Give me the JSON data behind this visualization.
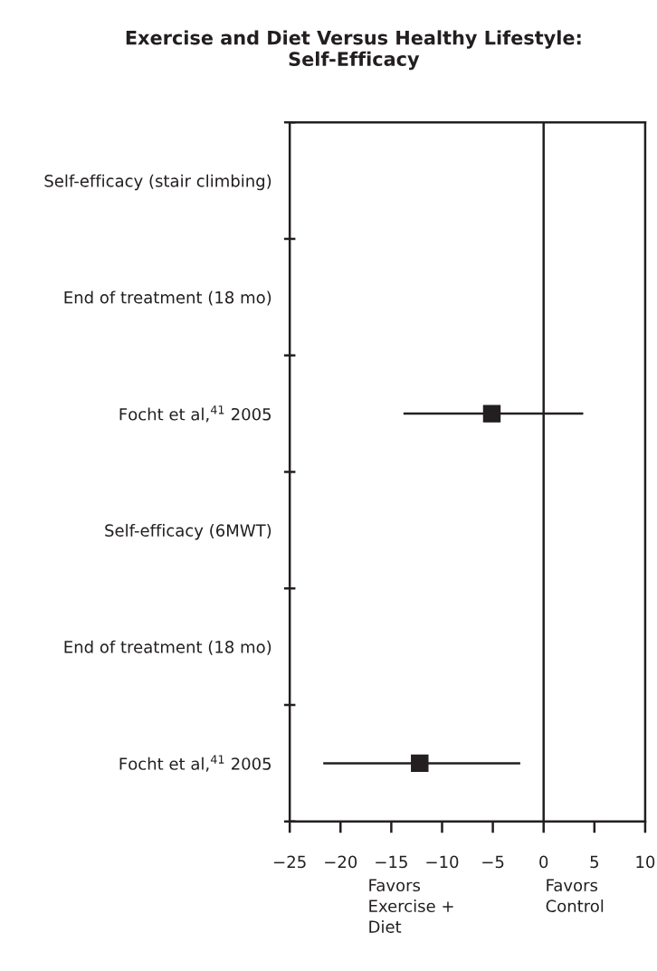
{
  "chart_data": {
    "type": "scatter",
    "orientation": "horizontal",
    "title": "Exercise and Diet Versus Healthy Lifestyle:\nSelf-Efficacy",
    "categories": [
      "Self-efficacy (stair climbing)",
      "End of treatment (18 mo)",
      "Focht et al,$^{41}$ 2005",
      "Self-efficacy (6MWT)",
      "End of treatment (18 mo)",
      "Focht et al,$^{41}$ 2005"
    ],
    "series": [
      {
        "color": "#231f20",
        "values": [
          null,
          null,
          -5.1,
          null,
          null,
          -12.2
        ],
        "errors": [
          null,
          null,
          [
            -13.8,
            3.9
          ],
          null,
          null,
          [
            -21.7,
            -2.3
          ]
        ]
      }
    ],
    "marker": "square",
    "xlim": [
      -25,
      10
    ],
    "xticks": [
      {
        "value": -25,
        "label": "−25"
      },
      {
        "value": -20,
        "label": "−20"
      },
      {
        "value": -15,
        "label": "−15"
      },
      {
        "value": -10,
        "label": "−10"
      },
      {
        "value": -5,
        "label": "−5"
      },
      0,
      5,
      10
    ],
    "ref_lines": [
      {
        "axis": "x",
        "value": 0,
        "color": "#231f20"
      }
    ],
    "annotations": [
      "Favors\nExercise +\nDiet",
      "Favors\nControl"
    ],
    "grid": false,
    "legend": false
  }
}
